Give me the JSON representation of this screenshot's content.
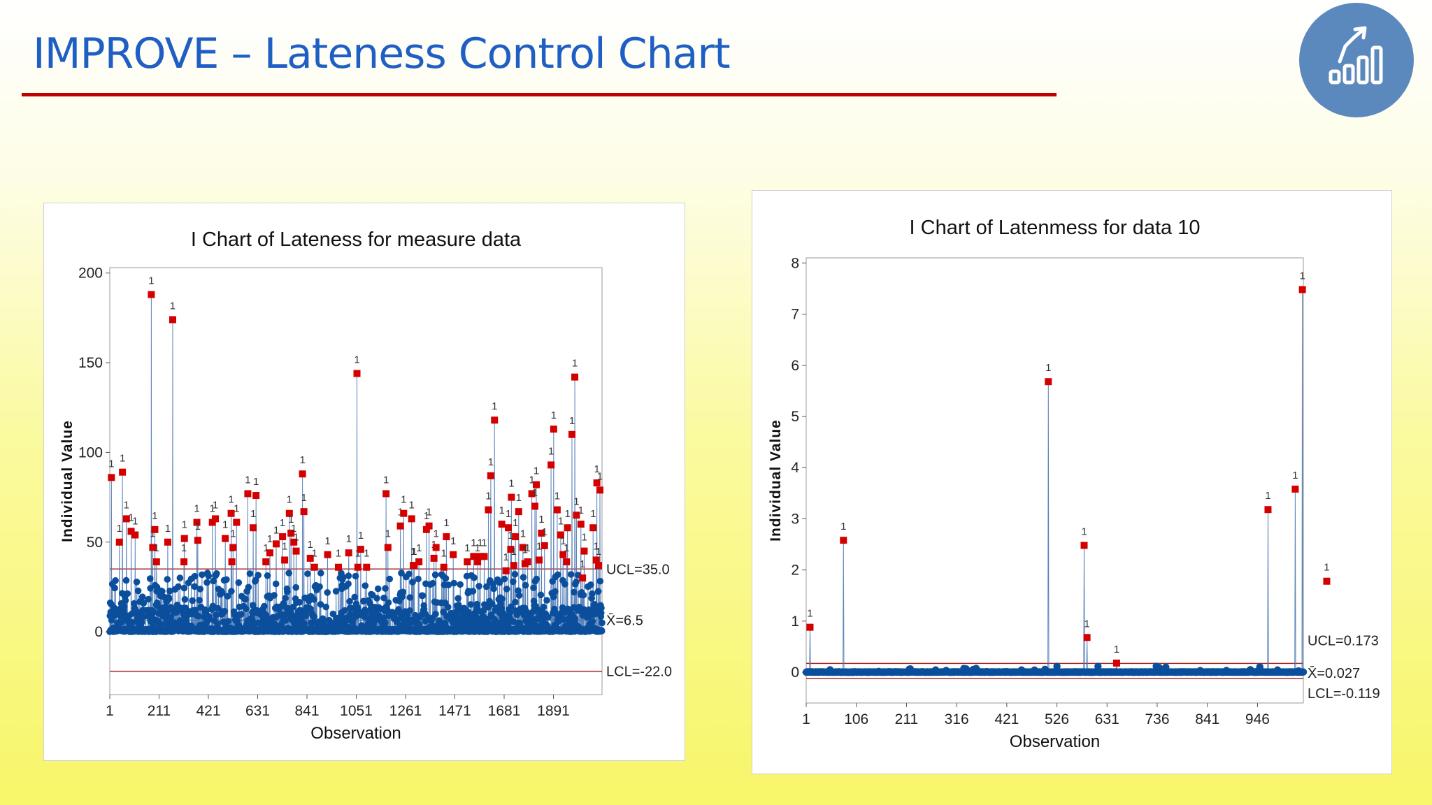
{
  "page": {
    "title": "IMPROVE – Lateness Control Chart"
  },
  "colors": {
    "title": "#1f5fc4",
    "rule": "#c00000",
    "logo_bg": "#5b88bd",
    "point": "#0b4f9c",
    "out_of_control": "#d40000",
    "limit_line": "#a52a2a",
    "center_line": "#2e8b57"
  },
  "logo": {
    "icon": "growth-chart-icon"
  },
  "chart_data": [
    {
      "type": "scatter",
      "chart_kind": "I Chart (individuals control chart)",
      "title": "I Chart of Lateness for measure data",
      "xlabel": "Observation",
      "ylabel": "Individual Value",
      "xlim": [
        1,
        2098
      ],
      "ylim": [
        -35,
        203
      ],
      "yticks": [
        0,
        50,
        100,
        150,
        200
      ],
      "ytick_labels": [
        "0",
        "50",
        "100",
        "150",
        "200"
      ],
      "xticks": [
        1,
        211,
        421,
        631,
        841,
        1051,
        1261,
        1471,
        1681,
        1891
      ],
      "xtick_labels": [
        "1",
        "211",
        "421",
        "631",
        "841",
        "1051",
        "1261",
        "1471",
        "1681",
        "1891"
      ],
      "n_observations": 2098,
      "grid": false,
      "limits": {
        "UCL": 35.0,
        "CL": 6.5,
        "LCL": -22.0
      },
      "limit_labels": {
        "UCL": "UCL=35.0",
        "CL": "X̄=6.5",
        "LCL": "LCL=-22.0"
      },
      "test_flag_label": "1",
      "out_of_control_points": [
        {
          "x": 8,
          "y": 86
        },
        {
          "x": 42,
          "y": 50
        },
        {
          "x": 55,
          "y": 89
        },
        {
          "x": 72,
          "y": 63
        },
        {
          "x": 92,
          "y": 56
        },
        {
          "x": 109,
          "y": 54
        },
        {
          "x": 178,
          "y": 188
        },
        {
          "x": 184,
          "y": 47
        },
        {
          "x": 193,
          "y": 57
        },
        {
          "x": 200,
          "y": 39
        },
        {
          "x": 248,
          "y": 50
        },
        {
          "x": 269,
          "y": 174
        },
        {
          "x": 317,
          "y": 39
        },
        {
          "x": 319,
          "y": 52
        },
        {
          "x": 372,
          "y": 61
        },
        {
          "x": 376,
          "y": 51
        },
        {
          "x": 438,
          "y": 61
        },
        {
          "x": 451,
          "y": 63
        },
        {
          "x": 493,
          "y": 52
        },
        {
          "x": 518,
          "y": 66
        },
        {
          "x": 521,
          "y": 39
        },
        {
          "x": 526,
          "y": 47
        },
        {
          "x": 541,
          "y": 61
        },
        {
          "x": 589,
          "y": 77
        },
        {
          "x": 612,
          "y": 58
        },
        {
          "x": 624,
          "y": 76
        },
        {
          "x": 666,
          "y": 39
        },
        {
          "x": 683,
          "y": 44
        },
        {
          "x": 710,
          "y": 49
        },
        {
          "x": 737,
          "y": 53
        },
        {
          "x": 746,
          "y": 40
        },
        {
          "x": 766,
          "y": 66
        },
        {
          "x": 773,
          "y": 55
        },
        {
          "x": 785,
          "y": 50
        },
        {
          "x": 795,
          "y": 45
        },
        {
          "x": 822,
          "y": 88
        },
        {
          "x": 828,
          "y": 67
        },
        {
          "x": 855,
          "y": 41
        },
        {
          "x": 873,
          "y": 36
        },
        {
          "x": 929,
          "y": 43
        },
        {
          "x": 975,
          "y": 36
        },
        {
          "x": 1019,
          "y": 44
        },
        {
          "x": 1054,
          "y": 144
        },
        {
          "x": 1058,
          "y": 36
        },
        {
          "x": 1070,
          "y": 46
        },
        {
          "x": 1095,
          "y": 36
        },
        {
          "x": 1178,
          "y": 77
        },
        {
          "x": 1186,
          "y": 47
        },
        {
          "x": 1239,
          "y": 59
        },
        {
          "x": 1253,
          "y": 66
        },
        {
          "x": 1287,
          "y": 63
        },
        {
          "x": 1294,
          "y": 37
        },
        {
          "x": 1298,
          "y": 37
        },
        {
          "x": 1318,
          "y": 39
        },
        {
          "x": 1350,
          "y": 57
        },
        {
          "x": 1361,
          "y": 59
        },
        {
          "x": 1382,
          "y": 41
        },
        {
          "x": 1391,
          "y": 47
        },
        {
          "x": 1424,
          "y": 36
        },
        {
          "x": 1435,
          "y": 53
        },
        {
          "x": 1464,
          "y": 43
        },
        {
          "x": 1524,
          "y": 39
        },
        {
          "x": 1551,
          "y": 42
        },
        {
          "x": 1568,
          "y": 39
        },
        {
          "x": 1579,
          "y": 42
        },
        {
          "x": 1596,
          "y": 42
        },
        {
          "x": 1614,
          "y": 68
        },
        {
          "x": 1624,
          "y": 87
        },
        {
          "x": 1640,
          "y": 118
        },
        {
          "x": 1671,
          "y": 60
        },
        {
          "x": 1689,
          "y": 34
        },
        {
          "x": 1699,
          "y": 58
        },
        {
          "x": 1709,
          "y": 46
        },
        {
          "x": 1712,
          "y": 75
        },
        {
          "x": 1722,
          "y": 37
        },
        {
          "x": 1729,
          "y": 53
        },
        {
          "x": 1743,
          "y": 67
        },
        {
          "x": 1761,
          "y": 47
        },
        {
          "x": 1770,
          "y": 38
        },
        {
          "x": 1781,
          "y": 39
        },
        {
          "x": 1799,
          "y": 77
        },
        {
          "x": 1812,
          "y": 70
        },
        {
          "x": 1818,
          "y": 82
        },
        {
          "x": 1830,
          "y": 40
        },
        {
          "x": 1840,
          "y": 55
        },
        {
          "x": 1853,
          "y": 48
        },
        {
          "x": 1881,
          "y": 93
        },
        {
          "x": 1892,
          "y": 113
        },
        {
          "x": 1907,
          "y": 68
        },
        {
          "x": 1922,
          "y": 54
        },
        {
          "x": 1932,
          "y": 43
        },
        {
          "x": 1947,
          "y": 39
        },
        {
          "x": 1951,
          "y": 58
        },
        {
          "x": 1970,
          "y": 110
        },
        {
          "x": 1982,
          "y": 142
        },
        {
          "x": 1989,
          "y": 65
        },
        {
          "x": 2008,
          "y": 60
        },
        {
          "x": 2015,
          "y": 30
        },
        {
          "x": 2022,
          "y": 45
        },
        {
          "x": 2060,
          "y": 58
        },
        {
          "x": 2073,
          "y": 40
        },
        {
          "x": 2076,
          "y": 83
        },
        {
          "x": 2083,
          "y": 37
        },
        {
          "x": 2089,
          "y": 79
        }
      ]
    },
    {
      "type": "scatter",
      "chart_kind": "I Chart (individuals control chart)",
      "title": "I Chart of Latenmess for data 10",
      "xlabel": "Observation",
      "ylabel": "Individual Value",
      "xlim": [
        1,
        1042
      ],
      "ylim": [
        -0.6,
        8.1
      ],
      "yticks": [
        0,
        1,
        2,
        3,
        4,
        5,
        6,
        7,
        8
      ],
      "ytick_labels": [
        "0",
        "1",
        "2",
        "3",
        "4",
        "5",
        "6",
        "7",
        "8"
      ],
      "xticks": [
        1,
        106,
        211,
        316,
        421,
        526,
        631,
        736,
        841,
        946
      ],
      "xtick_labels": [
        "1",
        "106",
        "211",
        "316",
        "421",
        "526",
        "631",
        "736",
        "841",
        "946"
      ],
      "n_observations": 1042,
      "grid": false,
      "limits": {
        "UCL": 0.173,
        "CL": 0.027,
        "LCL": -0.119
      },
      "limit_labels": {
        "UCL": "UCL=0.173",
        "CL": "X̄=0.027",
        "LCL": "LCL=-0.119"
      },
      "test_flag_label": "1",
      "out_of_control_points": [
        {
          "x": 9,
          "y": 0.88
        },
        {
          "x": 79,
          "y": 2.58
        },
        {
          "x": 508,
          "y": 5.68
        },
        {
          "x": 583,
          "y": 2.48
        },
        {
          "x": 589,
          "y": 0.68
        },
        {
          "x": 651,
          "y": 0.18
        },
        {
          "x": 968,
          "y": 3.18
        },
        {
          "x": 1025,
          "y": 3.58
        },
        {
          "x": 1040,
          "y": 7.48
        },
        {
          "x": 1091,
          "y": 1.78
        }
      ]
    }
  ]
}
